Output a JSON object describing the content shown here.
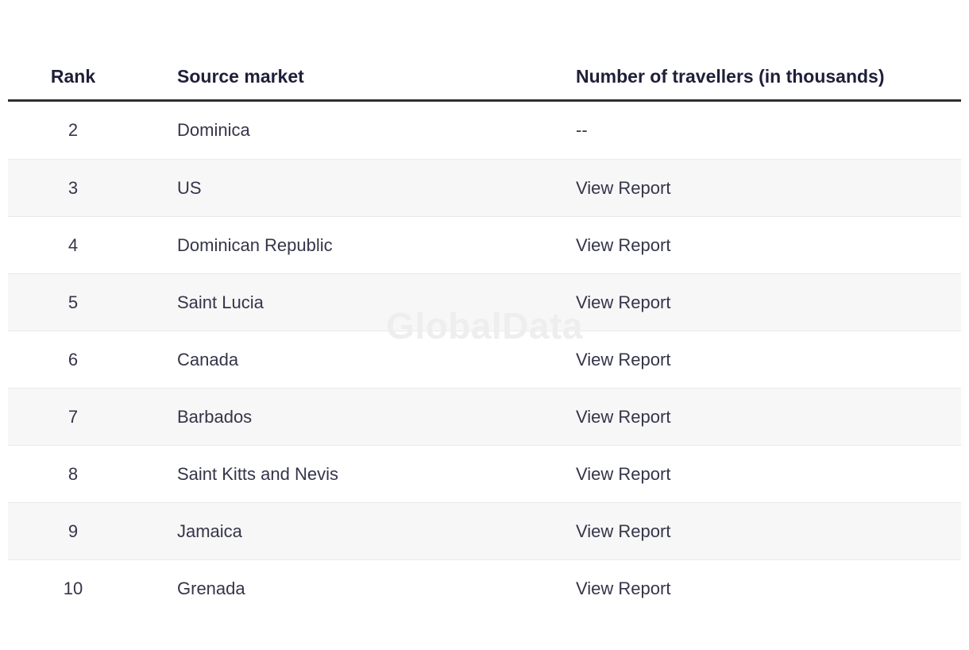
{
  "watermark": "GlobalData",
  "colors": {
    "header_text": "#1f1f3a",
    "body_text": "#35354a",
    "header_rule": "#2f2f2f",
    "row_separator": "#e9e9e9",
    "row_alt_background": "#f7f7f7",
    "watermark_text": "#eeeeef"
  },
  "table": {
    "columns": [
      {
        "key": "rank",
        "label": "Rank"
      },
      {
        "key": "market",
        "label": "Source market"
      },
      {
        "key": "travellers",
        "label": "Number of travellers (in thousands)"
      }
    ],
    "rows": [
      {
        "rank": "2",
        "market": "Dominica",
        "travellers": "--",
        "is_link": false
      },
      {
        "rank": "3",
        "market": "US",
        "travellers": "View Report",
        "is_link": true
      },
      {
        "rank": "4",
        "market": "Dominican Republic",
        "travellers": "View Report",
        "is_link": true
      },
      {
        "rank": "5",
        "market": "Saint Lucia",
        "travellers": "View Report",
        "is_link": true
      },
      {
        "rank": "6",
        "market": "Canada",
        "travellers": "View Report",
        "is_link": true
      },
      {
        "rank": "7",
        "market": "Barbados",
        "travellers": "View Report",
        "is_link": true
      },
      {
        "rank": "8",
        "market": "Saint Kitts and Nevis",
        "travellers": "View Report",
        "is_link": true
      },
      {
        "rank": "9",
        "market": "Jamaica",
        "travellers": "View Report",
        "is_link": true
      },
      {
        "rank": "10",
        "market": "Grenada",
        "travellers": "View Report",
        "is_link": true
      }
    ]
  }
}
